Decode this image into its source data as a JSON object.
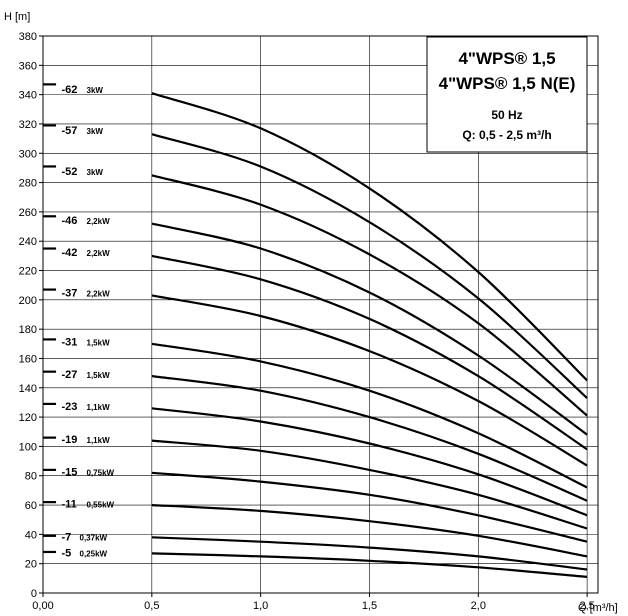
{
  "chart_data": {
    "type": "line",
    "title_lines": [
      "4\"WPS® 1,5",
      "4\"WPS® 1,5 N(E)"
    ],
    "subtitle_lines": [
      "50 Hz",
      "Q: 0,5 - 2,5 m³/h"
    ],
    "xlabel": "Q [m³/h]",
    "ylabel": "H [m]",
    "xlim": [
      0,
      2.55
    ],
    "ylim": [
      0,
      380
    ],
    "x_ticks": [
      0,
      0.5,
      1.0,
      1.5,
      2.0,
      2.5
    ],
    "x_tick_labels": [
      "0,00",
      "0,5",
      "1,0",
      "1,5",
      "2,0",
      "2,5"
    ],
    "y_ticks": [
      0,
      20,
      40,
      60,
      80,
      100,
      120,
      140,
      160,
      180,
      200,
      220,
      240,
      260,
      280,
      300,
      320,
      340,
      360,
      380
    ],
    "grid": true,
    "x": [
      0,
      0.5,
      1.0,
      1.5,
      2.0,
      2.5
    ],
    "series": [
      {
        "label": "-62",
        "power": "3kW",
        "values": [
          347,
          341,
          317,
          276,
          219,
          145
        ]
      },
      {
        "label": "-57",
        "power": "3kW",
        "values": [
          319,
          313,
          291,
          253,
          201,
          133
        ]
      },
      {
        "label": "-52",
        "power": "3kW",
        "values": [
          291,
          285,
          265,
          231,
          184,
          121
        ]
      },
      {
        "label": "-46",
        "power": "2,2kW",
        "values": [
          257,
          252,
          235,
          205,
          162,
          108
        ]
      },
      {
        "label": "-42",
        "power": "2,2kW",
        "values": [
          235,
          230,
          214,
          187,
          148,
          98
        ]
      },
      {
        "label": "-37",
        "power": "2,2kW",
        "values": [
          207,
          203,
          189,
          165,
          131,
          87
        ]
      },
      {
        "label": "-31",
        "power": "1,5kW",
        "values": [
          173,
          170,
          158,
          138,
          109,
          72
        ]
      },
      {
        "label": "-27",
        "power": "1,5kW",
        "values": [
          151,
          148,
          138,
          120,
          95,
          63
        ]
      },
      {
        "label": "-23",
        "power": "1,1kW",
        "values": [
          129,
          126,
          117,
          102,
          81,
          53
        ]
      },
      {
        "label": "-19",
        "power": "1,1kW",
        "values": [
          106,
          104,
          97,
          84,
          67,
          44
        ]
      },
      {
        "label": "-15",
        "power": "0,75kW",
        "values": [
          84,
          82,
          76,
          67,
          53,
          35
        ]
      },
      {
        "label": "-11",
        "power": "0,55kW",
        "values": [
          62,
          60,
          56,
          49,
          39,
          25
        ]
      },
      {
        "label": "-7",
        "power": "0,37kW",
        "values": [
          39,
          38,
          35,
          31,
          25,
          16
        ]
      },
      {
        "label": "-5",
        "power": "0,25kW",
        "values": [
          28,
          27,
          25,
          22,
          17.5,
          11
        ]
      }
    ]
  }
}
